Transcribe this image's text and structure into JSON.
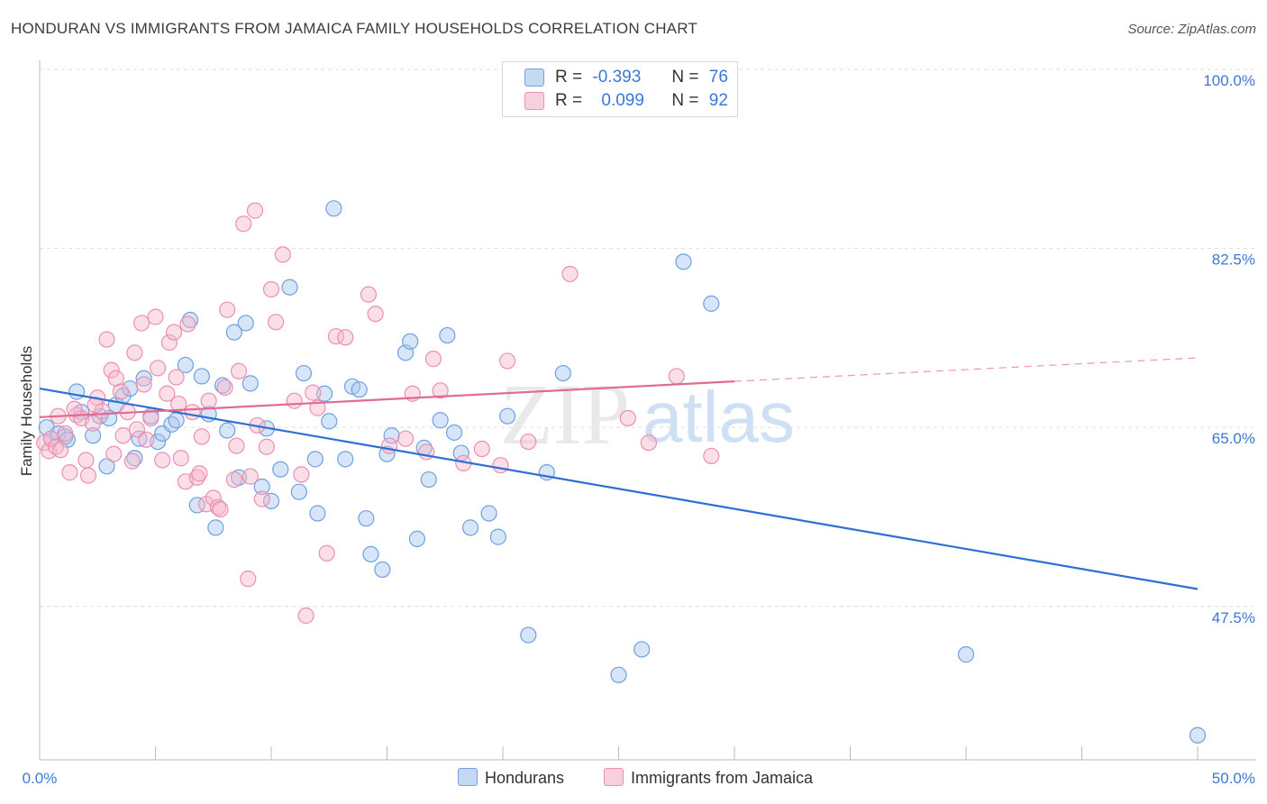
{
  "title": "HONDURAN VS IMMIGRANTS FROM JAMAICA FAMILY HOUSEHOLDS CORRELATION CHART",
  "source": "Source: ZipAtlas.com",
  "watermark": {
    "zip": "ZIP",
    "atlas": "atlas"
  },
  "legend": {
    "r_label": "R =",
    "n_label": "N =",
    "rows": [
      {
        "r": "-0.393",
        "n": "76",
        "color": "#a7c6ef"
      },
      {
        "r": "0.099",
        "n": "92",
        "color": "#f5b7cb"
      }
    ]
  },
  "bottom_legend": [
    {
      "label": "Hondurans",
      "color": "#a7c6ef"
    },
    {
      "label": "Immigrants from Jamaica",
      "color": "#f5b7cb"
    }
  ],
  "chart_data": {
    "type": "scatter",
    "title": "HONDURAN VS IMMIGRANTS FROM JAMAICA FAMILY HOUSEHOLDS CORRELATION CHART",
    "ylabel": "Family Households",
    "xlim": [
      0,
      50
    ],
    "ylim": [
      32.5,
      100
    ],
    "x_tick_labels": [
      "0.0%",
      "50.0%"
    ],
    "y_ticks": [
      {
        "value": 100,
        "label": "100.0%"
      },
      {
        "value": 82.5,
        "label": "82.5%"
      },
      {
        "value": 65,
        "label": "65.0%"
      },
      {
        "value": 47.5,
        "label": "47.5%"
      }
    ],
    "grid": "horizontal dashed",
    "series": [
      {
        "name": "Hondurans",
        "color": "#6fa0e0",
        "fill": "#a7c6ef",
        "trend": {
          "x0": 0,
          "y0": 68.8,
          "x1": 50,
          "y1": 49.2,
          "color": "#2e6fd4"
        },
        "points": [
          [
            0.3,
            65.0
          ],
          [
            0.5,
            63.9
          ],
          [
            0.8,
            64.4
          ],
          [
            1.1,
            64.1
          ],
          [
            1.2,
            63.8
          ],
          [
            1.6,
            68.5
          ],
          [
            1.8,
            66.5
          ],
          [
            2.3,
            64.2
          ],
          [
            2.6,
            66.1
          ],
          [
            2.9,
            61.2
          ],
          [
            3.0,
            65.9
          ],
          [
            3.3,
            67.2
          ],
          [
            3.6,
            68.1
          ],
          [
            3.9,
            68.8
          ],
          [
            4.1,
            62.0
          ],
          [
            4.3,
            63.9
          ],
          [
            4.5,
            69.8
          ],
          [
            4.8,
            66.1
          ],
          [
            5.1,
            63.6
          ],
          [
            5.3,
            64.4
          ],
          [
            5.7,
            65.3
          ],
          [
            5.9,
            65.7
          ],
          [
            6.3,
            71.1
          ],
          [
            6.5,
            75.5
          ],
          [
            6.8,
            57.4
          ],
          [
            7.0,
            70.0
          ],
          [
            7.3,
            66.3
          ],
          [
            7.6,
            55.2
          ],
          [
            7.9,
            69.1
          ],
          [
            8.1,
            64.7
          ],
          [
            8.4,
            74.3
          ],
          [
            8.6,
            60.1
          ],
          [
            8.9,
            75.2
          ],
          [
            9.1,
            69.3
          ],
          [
            9.6,
            59.2
          ],
          [
            9.8,
            64.9
          ],
          [
            10.0,
            57.8
          ],
          [
            10.4,
            60.9
          ],
          [
            10.8,
            78.7
          ],
          [
            11.2,
            58.7
          ],
          [
            11.4,
            70.3
          ],
          [
            11.9,
            61.9
          ],
          [
            12.3,
            68.3
          ],
          [
            12.5,
            65.6
          ],
          [
            12.7,
            86.4
          ],
          [
            13.2,
            61.9
          ],
          [
            13.5,
            69.0
          ],
          [
            13.8,
            68.7
          ],
          [
            14.1,
            56.1
          ],
          [
            14.3,
            52.6
          ],
          [
            14.8,
            51.1
          ],
          [
            15.0,
            62.4
          ],
          [
            15.2,
            64.2
          ],
          [
            15.8,
            72.3
          ],
          [
            16.0,
            73.4
          ],
          [
            16.3,
            54.1
          ],
          [
            16.6,
            63.0
          ],
          [
            16.8,
            59.9
          ],
          [
            17.3,
            65.7
          ],
          [
            17.6,
            74.0
          ],
          [
            17.9,
            64.5
          ],
          [
            18.2,
            62.5
          ],
          [
            18.6,
            55.2
          ],
          [
            19.4,
            56.6
          ],
          [
            19.8,
            54.3
          ],
          [
            20.2,
            66.1
          ],
          [
            21.1,
            44.7
          ],
          [
            21.9,
            60.6
          ],
          [
            22.6,
            70.3
          ],
          [
            25.0,
            40.8
          ],
          [
            26.0,
            43.3
          ],
          [
            27.8,
            81.2
          ],
          [
            29.0,
            77.1
          ],
          [
            40.0,
            42.8
          ],
          [
            50.0,
            34.9
          ],
          [
            12.0,
            56.6
          ]
        ]
      },
      {
        "name": "Immigrants from Jamaica",
        "color": "#ec8fae",
        "fill": "#f5b7cb",
        "trend": {
          "x0": 0,
          "y0": 66.0,
          "x1": 30,
          "y1": 69.5,
          "color": "#e06a93",
          "dash_to": {
            "x": 50,
            "y": 71.8
          }
        },
        "points": [
          [
            0.2,
            63.5
          ],
          [
            0.4,
            62.7
          ],
          [
            0.5,
            63.9
          ],
          [
            0.7,
            63.1
          ],
          [
            0.9,
            62.8
          ],
          [
            1.1,
            64.4
          ],
          [
            1.3,
            60.6
          ],
          [
            1.6,
            66.2
          ],
          [
            1.8,
            65.9
          ],
          [
            2.1,
            60.3
          ],
          [
            2.3,
            65.4
          ],
          [
            2.5,
            67.9
          ],
          [
            2.7,
            66.6
          ],
          [
            2.9,
            73.6
          ],
          [
            3.1,
            70.6
          ],
          [
            3.3,
            69.8
          ],
          [
            3.5,
            68.5
          ],
          [
            3.6,
            64.2
          ],
          [
            3.8,
            66.5
          ],
          [
            4.0,
            61.7
          ],
          [
            4.1,
            72.3
          ],
          [
            4.2,
            64.8
          ],
          [
            4.4,
            75.2
          ],
          [
            4.5,
            69.2
          ],
          [
            4.8,
            65.9
          ],
          [
            5.0,
            75.8
          ],
          [
            5.1,
            70.8
          ],
          [
            5.3,
            61.8
          ],
          [
            5.5,
            68.3
          ],
          [
            5.6,
            73.3
          ],
          [
            5.8,
            74.3
          ],
          [
            6.0,
            67.3
          ],
          [
            6.1,
            62.0
          ],
          [
            6.3,
            59.7
          ],
          [
            6.4,
            75.1
          ],
          [
            6.6,
            66.5
          ],
          [
            6.8,
            60.1
          ],
          [
            7.0,
            64.1
          ],
          [
            7.2,
            57.5
          ],
          [
            7.3,
            67.6
          ],
          [
            7.5,
            58.1
          ],
          [
            7.7,
            57.2
          ],
          [
            7.8,
            57.0
          ],
          [
            8.0,
            68.9
          ],
          [
            8.1,
            76.5
          ],
          [
            8.4,
            59.9
          ],
          [
            8.6,
            70.5
          ],
          [
            8.8,
            84.9
          ],
          [
            9.0,
            50.2
          ],
          [
            9.1,
            60.2
          ],
          [
            9.3,
            86.2
          ],
          [
            9.6,
            58.0
          ],
          [
            9.8,
            63.1
          ],
          [
            10.0,
            78.5
          ],
          [
            10.2,
            75.3
          ],
          [
            10.5,
            81.9
          ],
          [
            11.0,
            67.6
          ],
          [
            11.3,
            60.4
          ],
          [
            11.5,
            46.6
          ],
          [
            12.0,
            66.9
          ],
          [
            12.4,
            52.7
          ],
          [
            12.8,
            73.9
          ],
          [
            13.2,
            73.8
          ],
          [
            14.2,
            78.0
          ],
          [
            14.5,
            76.1
          ],
          [
            15.1,
            63.2
          ],
          [
            15.8,
            63.9
          ],
          [
            16.1,
            68.3
          ],
          [
            17.0,
            71.7
          ],
          [
            17.3,
            68.6
          ],
          [
            18.3,
            61.5
          ],
          [
            19.1,
            62.9
          ],
          [
            19.9,
            61.3
          ],
          [
            20.2,
            71.5
          ],
          [
            21.1,
            63.6
          ],
          [
            22.9,
            80.0
          ],
          [
            25.4,
            65.9
          ],
          [
            26.3,
            63.5
          ],
          [
            27.5,
            70.0
          ],
          [
            29.0,
            62.2
          ],
          [
            1.5,
            66.8
          ],
          [
            2.4,
            67.2
          ],
          [
            3.2,
            62.4
          ],
          [
            4.6,
            63.8
          ],
          [
            0.8,
            66.1
          ],
          [
            6.9,
            60.5
          ],
          [
            8.5,
            63.2
          ],
          [
            2.0,
            61.8
          ],
          [
            5.9,
            69.9
          ],
          [
            11.8,
            68.4
          ],
          [
            9.4,
            65.2
          ],
          [
            16.7,
            62.6
          ]
        ]
      }
    ]
  }
}
